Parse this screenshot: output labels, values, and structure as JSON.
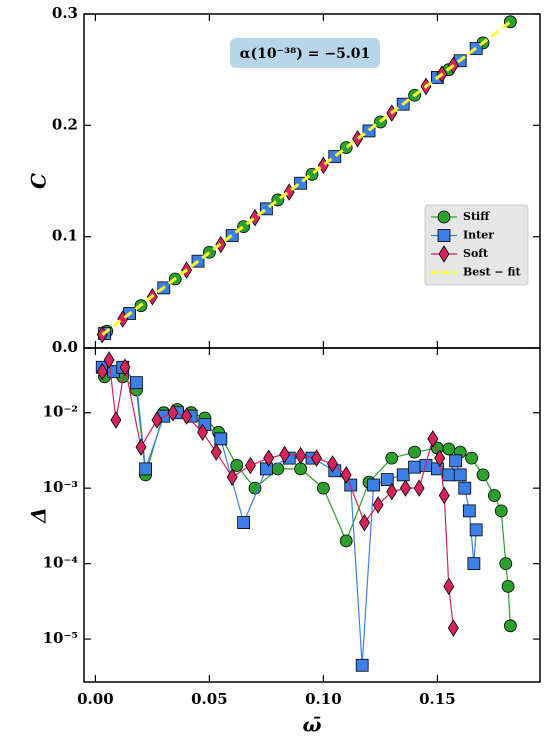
{
  "chart_data": [
    {
      "type": "scatter",
      "ylabel": "C",
      "annotation": "α(10⁻³⁸) = −5.01",
      "legend": "center right",
      "xlim": [
        -0.005,
        0.195
      ],
      "ylim": [
        0,
        0.3
      ],
      "yticks": [
        {
          "value": 0,
          "label": "0.0"
        },
        0.1,
        0.2,
        0.3
      ],
      "series": [
        {
          "name": "Stiff",
          "color": "#2ca02c",
          "marker": "o",
          "x": [
            0.005,
            0.02,
            0.035,
            0.05,
            0.065,
            0.08,
            0.095,
            0.11,
            0.125,
            0.14,
            0.155,
            0.17,
            0.182
          ],
          "values": [
            0.015,
            0.038,
            0.062,
            0.086,
            0.109,
            0.133,
            0.156,
            0.18,
            0.203,
            0.227,
            0.25,
            0.274,
            0.293
          ]
        },
        {
          "name": "Inter",
          "color": "#3d7fe6",
          "marker": "s",
          "x": [
            0.004,
            0.015,
            0.03,
            0.045,
            0.06,
            0.075,
            0.09,
            0.105,
            0.12,
            0.135,
            0.15,
            0.16,
            0.167
          ],
          "values": [
            0.013,
            0.031,
            0.054,
            0.078,
            0.101,
            0.125,
            0.148,
            0.172,
            0.195,
            0.219,
            0.243,
            0.258,
            0.269
          ]
        },
        {
          "name": "Soft",
          "color": "#d6245a",
          "marker": "D",
          "x": [
            0.003,
            0.012,
            0.025,
            0.04,
            0.055,
            0.07,
            0.085,
            0.1,
            0.115,
            0.13,
            0.145,
            0.152,
            0.157
          ],
          "values": [
            0.012,
            0.026,
            0.046,
            0.07,
            0.093,
            0.117,
            0.14,
            0.164,
            0.188,
            0.211,
            0.235,
            0.246,
            0.254
          ]
        },
        {
          "name": "Best − fit",
          "color": "#ffff33",
          "marker": "dash",
          "x": [
            0.003,
            0.182
          ],
          "values": [
            0.012,
            0.293
          ]
        }
      ]
    },
    {
      "type": "line",
      "ylabel": "Δ",
      "xlabel": "ω̄",
      "ylog": true,
      "xlim": [
        -0.005,
        0.195
      ],
      "ylim": [
        2.7e-06,
        0.072
      ],
      "xticks": [
        {
          "value": 0,
          "label": "0.00"
        },
        0.05,
        {
          "value": 0.1,
          "label": "0.10"
        },
        0.15
      ],
      "yticks": [
        {
          "value": 1e-05,
          "label": "10⁻⁵"
        },
        {
          "value": 0.0001,
          "label": "10⁻⁴"
        },
        {
          "value": 0.001,
          "label": "10⁻³"
        },
        {
          "value": 0.01,
          "label": "10⁻²"
        }
      ],
      "series": [
        {
          "name": "Stiff",
          "color": "#2ca02c",
          "marker": "o",
          "x": [
            0.004,
            0.008,
            0.012,
            0.018,
            0.022,
            0.03,
            0.036,
            0.042,
            0.048,
            0.054,
            0.062,
            0.07,
            0.08,
            0.09,
            0.1,
            0.11,
            0.12,
            0.13,
            0.14,
            0.15,
            0.155,
            0.16,
            0.165,
            0.17,
            0.175,
            0.178,
            0.18,
            0.181,
            0.182
          ],
          "values": [
            0.03,
            0.035,
            0.03,
            0.02,
            0.0015,
            0.01,
            0.011,
            0.01,
            0.0085,
            0.0055,
            0.002,
            0.001,
            0.0018,
            0.0018,
            0.001,
            0.0002,
            0.0012,
            0.0025,
            0.003,
            0.0034,
            0.0033,
            0.003,
            0.0025,
            0.0015,
            0.0008,
            0.0005,
            0.0001,
            5e-05,
            1.5e-05
          ]
        },
        {
          "name": "Inter",
          "color": "#3d7fe6",
          "marker": "s",
          "x": [
            0.003,
            0.008,
            0.012,
            0.018,
            0.022,
            0.03,
            0.036,
            0.042,
            0.048,
            0.055,
            0.065,
            0.075,
            0.085,
            0.095,
            0.105,
            0.112,
            0.117,
            0.122,
            0.128,
            0.135,
            0.14,
            0.145,
            0.15,
            0.155,
            0.158,
            0.16,
            0.162,
            0.164,
            0.166,
            0.167
          ],
          "values": [
            0.04,
            0.035,
            0.04,
            0.025,
            0.0018,
            0.009,
            0.01,
            0.009,
            0.007,
            0.0045,
            0.00035,
            0.0018,
            0.0025,
            0.0025,
            0.0017,
            0.0011,
            4.5e-06,
            0.0011,
            0.0013,
            0.0015,
            0.0019,
            0.002,
            0.0018,
            0.0015,
            0.0023,
            0.0015,
            0.001,
            0.0005,
            0.0001,
            0.00028
          ]
        },
        {
          "name": "Soft",
          "color": "#d6245a",
          "marker": "D",
          "x": [
            0.003,
            0.006,
            0.009,
            0.013,
            0.02,
            0.027,
            0.034,
            0.04,
            0.047,
            0.053,
            0.06,
            0.068,
            0.076,
            0.083,
            0.09,
            0.097,
            0.104,
            0.11,
            0.118,
            0.124,
            0.13,
            0.136,
            0.142,
            0.148,
            0.151,
            0.153,
            0.155,
            0.157
          ],
          "values": [
            0.035,
            0.05,
            0.008,
            0.04,
            0.0035,
            0.008,
            0.01,
            0.009,
            0.0055,
            0.003,
            0.0014,
            0.002,
            0.0025,
            0.0028,
            0.0027,
            0.0025,
            0.0021,
            0.0015,
            0.00035,
            0.0006,
            0.0009,
            0.001,
            0.001,
            0.0045,
            0.0025,
            0.0008,
            5e-05,
            1.4e-05
          ]
        }
      ]
    }
  ]
}
